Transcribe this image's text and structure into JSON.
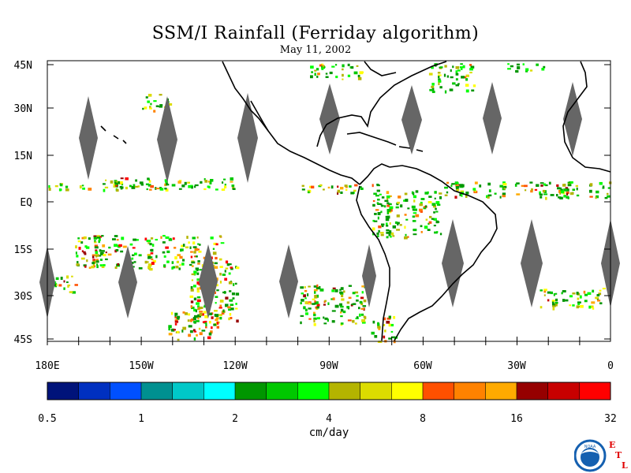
{
  "title": "SSM/I Rainfall (Ferriday algorithm)",
  "subtitle": "May 11, 2002",
  "lat_labels": [
    "45N",
    "30N",
    "15N",
    "EQ",
    "15S",
    "30S",
    "45S"
  ],
  "lon_labels": [
    "180E",
    "150W",
    "120W",
    "90W",
    "60W",
    "30W",
    "0"
  ],
  "colorbar": {
    "colors": [
      "#00137a",
      "#0030c0",
      "#0050ff",
      "#009090",
      "#00c8c8",
      "#00ffff",
      "#009600",
      "#00c800",
      "#00ff00",
      "#b4b400",
      "#dcdc00",
      "#ffff00",
      "#ff5000",
      "#ff8200",
      "#ffaa00",
      "#960000",
      "#c80000",
      "#ff0000"
    ],
    "tick_labels": [
      "0.5",
      "1",
      "2",
      "4",
      "8",
      "16",
      "32"
    ],
    "units": "cm/day"
  },
  "logo": {
    "agency": "NOAA",
    "letters": [
      "E",
      "T",
      "L"
    ],
    "ring_color": "#1560b0",
    "letter_color": "#e00000"
  },
  "colors": {
    "gap": "#666666",
    "coast": "#000000"
  }
}
